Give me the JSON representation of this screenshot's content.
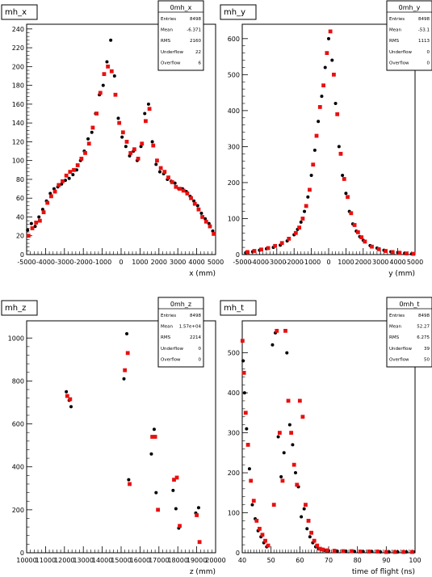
{
  "chart_data": [
    {
      "type": "scatter",
      "title": "mh_x",
      "xlabel": "x (mm)",
      "ylabel": "",
      "xlim": [
        -5000,
        5000
      ],
      "ylim": [
        0,
        245
      ],
      "xticks": [
        -5000,
        -4000,
        -3000,
        -2000,
        -1000,
        0,
        1000,
        2000,
        3000,
        4000,
        5000
      ],
      "xticklabels": [
        "-5000",
        "-4000",
        "-3000",
        "-2000",
        "-1000",
        "0",
        "1000",
        "2000",
        "3000",
        "4000",
        "5000"
      ],
      "yticks": [
        0,
        20,
        40,
        60,
        80,
        100,
        120,
        140,
        160,
        180,
        200,
        220,
        240
      ],
      "stats": {
        "title": "0mh_x",
        "rows": [
          {
            "label": "Entries",
            "value": "8498"
          },
          {
            "label": "Mean",
            "value": "-6.371"
          },
          {
            "label": "RMS",
            "value": "2160"
          },
          {
            "label": "Underflow",
            "value": "22"
          },
          {
            "label": "Overflow",
            "value": "6"
          }
        ]
      },
      "series": [
        {
          "color": "#000000",
          "x": [
            -4950,
            -4750,
            -4550,
            -4350,
            -4150,
            -3950,
            -3750,
            -3550,
            -3350,
            -3150,
            -2950,
            -2750,
            -2550,
            -2350,
            -2150,
            -1950,
            -1750,
            -1550,
            -1350,
            -1150,
            -950,
            -750,
            -550,
            -350,
            -150,
            50,
            250,
            450,
            650,
            850,
            1050,
            1250,
            1450,
            1650,
            1850,
            2050,
            2250,
            2450,
            2650,
            2850,
            3050,
            3250,
            3450,
            3650,
            3850,
            4050,
            4250,
            4450,
            4650,
            4850
          ],
          "y": [
            26,
            33,
            30,
            40,
            48,
            57,
            65,
            70,
            72,
            75,
            79,
            81,
            85,
            90,
            100,
            110,
            123,
            130,
            150,
            170,
            180,
            205,
            228,
            190,
            145,
            125,
            115,
            105,
            110,
            100,
            115,
            150,
            160,
            120,
            96,
            88,
            86,
            80,
            78,
            76,
            70,
            70,
            67,
            62,
            57,
            52,
            44,
            38,
            33,
            25
          ]
        },
        {
          "color": "#e81010",
          "x": [
            -4900,
            -4700,
            -4500,
            -4300,
            -4100,
            -3900,
            -3700,
            -3500,
            -3300,
            -3100,
            -2900,
            -2700,
            -2500,
            -2300,
            -2100,
            -1900,
            -1700,
            -1500,
            -1300,
            -1100,
            -900,
            -700,
            -500,
            -300,
            -100,
            100,
            300,
            500,
            700,
            900,
            1100,
            1300,
            1500,
            1700,
            1900,
            2100,
            2300,
            2500,
            2700,
            2900,
            3100,
            3300,
            3500,
            3700,
            3900,
            4100,
            4300,
            4500,
            4700,
            4900
          ],
          "y": [
            20,
            28,
            34,
            36,
            45,
            55,
            62,
            67,
            74,
            78,
            84,
            88,
            90,
            95,
            102,
            108,
            118,
            135,
            150,
            172,
            192,
            200,
            195,
            170,
            140,
            130,
            120,
            108,
            112,
            102,
            118,
            142,
            155,
            116,
            100,
            92,
            88,
            82,
            77,
            72,
            70,
            68,
            65,
            60,
            54,
            48,
            40,
            35,
            30,
            22
          ]
        }
      ]
    },
    {
      "type": "scatter",
      "title": "mh_y",
      "xlabel": "y (mm)",
      "ylabel": "",
      "xlim": [
        -5000,
        5000
      ],
      "ylim": [
        0,
        640
      ],
      "xticks": [
        -5000,
        -4000,
        -3000,
        -2000,
        -1000,
        0,
        1000,
        2000,
        3000,
        4000,
        5000
      ],
      "xticklabels": [
        "-5000",
        "-4000",
        "-3000",
        "-2000",
        "-1000",
        "0",
        "1000",
        "2000",
        "3000",
        "4000",
        "5000"
      ],
      "yticks": [
        0,
        100,
        200,
        300,
        400,
        500,
        600
      ],
      "stats": {
        "title": "0mh_y",
        "rows": [
          {
            "label": "Entries",
            "value": "8498"
          },
          {
            "label": "Mean",
            "value": "-53.1"
          },
          {
            "label": "RMS",
            "value": "1113"
          },
          {
            "label": "Underflow",
            "value": "0"
          },
          {
            "label": "Overflow",
            "value": "0"
          }
        ]
      },
      "series": [
        {
          "color": "#000000",
          "x": [
            -4800,
            -4400,
            -4000,
            -3600,
            -3200,
            -2800,
            -2400,
            -2000,
            -1800,
            -1600,
            -1400,
            -1200,
            -1000,
            -800,
            -600,
            -400,
            -200,
            0,
            200,
            400,
            600,
            800,
            1000,
            1200,
            1400,
            1600,
            1800,
            2000,
            2400,
            2800,
            3200,
            3600,
            4000,
            4400,
            4800
          ],
          "y": [
            5,
            8,
            12,
            16,
            20,
            26,
            38,
            55,
            70,
            90,
            120,
            160,
            220,
            290,
            370,
            440,
            520,
            600,
            540,
            420,
            300,
            220,
            170,
            120,
            85,
            65,
            50,
            40,
            25,
            18,
            12,
            8,
            6,
            4,
            2
          ]
        },
        {
          "color": "#e81010",
          "x": [
            -4700,
            -4300,
            -3900,
            -3500,
            -3100,
            -2700,
            -2300,
            -1900,
            -1700,
            -1500,
            -1300,
            -1100,
            -900,
            -700,
            -500,
            -300,
            -100,
            100,
            300,
            500,
            700,
            900,
            1100,
            1300,
            1500,
            1700,
            1900,
            2100,
            2500,
            2900,
            3300,
            3700,
            4100,
            4500,
            4900
          ],
          "y": [
            7,
            10,
            14,
            18,
            24,
            32,
            44,
            60,
            75,
            100,
            135,
            180,
            250,
            330,
            410,
            470,
            560,
            620,
            500,
            390,
            280,
            210,
            160,
            115,
            82,
            62,
            48,
            36,
            22,
            15,
            10,
            7,
            5,
            3,
            2
          ]
        }
      ]
    },
    {
      "type": "scatter",
      "title": "mh_z",
      "xlabel": "z (mm)",
      "ylabel": "",
      "xlim": [
        10000,
        20000
      ],
      "ylim": [
        0,
        1080
      ],
      "xticks": [
        10000,
        11000,
        12000,
        13000,
        14000,
        15000,
        16000,
        17000,
        18000,
        19000,
        20000
      ],
      "xticklabels": [
        "10000",
        "11000",
        "12000",
        "13000",
        "14000",
        "15000",
        "16000",
        "17000",
        "18000",
        "19000",
        "20000"
      ],
      "yticks": [
        0,
        200,
        400,
        600,
        800,
        1000
      ],
      "stats": {
        "title": "0mh_z",
        "rows": [
          {
            "label": "Entries",
            "value": "8498"
          },
          {
            "label": "Mean",
            "value": "1.57e+04"
          },
          {
            "label": "RMS",
            "value": "2214"
          },
          {
            "label": "Underflow",
            "value": "0"
          },
          {
            "label": "Overflow",
            "value": "0"
          }
        ]
      },
      "series": [
        {
          "color": "#000000",
          "x": [
            12100,
            12250,
            12350,
            15150,
            15300,
            15400,
            16600,
            16750,
            16850,
            17750,
            17900,
            18050,
            18950,
            19100
          ],
          "y": [
            750,
            710,
            680,
            810,
            1020,
            340,
            460,
            575,
            280,
            290,
            205,
            115,
            185,
            210
          ]
        },
        {
          "color": "#e81010",
          "x": [
            12150,
            12300,
            15200,
            15350,
            15450,
            16650,
            16800,
            16950,
            17800,
            17950,
            18100,
            19000,
            19150
          ],
          "y": [
            730,
            715,
            850,
            930,
            320,
            540,
            540,
            200,
            340,
            350,
            125,
            175,
            50
          ]
        }
      ]
    },
    {
      "type": "scatter",
      "title": "mh_t",
      "xlabel": "time of flight (ns)",
      "ylabel": "",
      "xlim": [
        40,
        100
      ],
      "ylim": [
        0,
        580
      ],
      "xticks": [
        40,
        50,
        60,
        70,
        80,
        90,
        100
      ],
      "xticklabels": [
        "40",
        "50",
        "60",
        "70",
        "80",
        "90",
        "100"
      ],
      "yticks": [
        0,
        100,
        200,
        300,
        400,
        500
      ],
      "stats": {
        "title": "0mh_t",
        "rows": [
          {
            "label": "Entries",
            "value": "8498"
          },
          {
            "label": "Mean",
            "value": "52.27"
          },
          {
            "label": "RMS",
            "value": "6.275"
          },
          {
            "label": "Underflow",
            "value": "39"
          },
          {
            "label": "Overflow",
            "value": "50"
          }
        ]
      },
      "series": [
        {
          "color": "#000000",
          "x": [
            40.3,
            40.8,
            41.5,
            42.5,
            43.5,
            44.5,
            45.5,
            46.5,
            47.5,
            48.5,
            50.5,
            51.5,
            52.5,
            53.5,
            54.5,
            55.5,
            56.5,
            57.5,
            58.5,
            59.5,
            60.5,
            61.5,
            62.5,
            63.5,
            64.5,
            65.5,
            66.5,
            67.5,
            68.5,
            70,
            73,
            76,
            79,
            82,
            85,
            88,
            91,
            94,
            97,
            99.5
          ],
          "y": [
            480,
            400,
            310,
            210,
            120,
            85,
            55,
            40,
            25,
            15,
            520,
            550,
            290,
            190,
            250,
            500,
            320,
            270,
            200,
            165,
            90,
            110,
            60,
            40,
            25,
            15,
            10,
            8,
            6,
            5,
            4,
            4,
            3,
            3,
            3,
            2,
            2,
            2,
            2,
            2
          ]
        },
        {
          "color": "#e81010",
          "x": [
            40.1,
            40.6,
            41.2,
            42.0,
            43.0,
            44.0,
            45.0,
            46.0,
            47.0,
            48.0,
            49.0,
            51.0,
            52.0,
            53.0,
            54.0,
            55.0,
            56.0,
            57.0,
            58.0,
            59.0,
            60.0,
            61.0,
            62.0,
            63.0,
            64.0,
            65.0,
            66.0,
            67.0,
            68.0,
            69.5,
            72,
            75,
            78,
            81,
            84,
            87,
            90,
            93,
            96,
            99
          ],
          "y": [
            530,
            450,
            350,
            270,
            180,
            130,
            80,
            60,
            45,
            30,
            18,
            120,
            555,
            300,
            180,
            555,
            380,
            300,
            220,
            170,
            380,
            340,
            120,
            80,
            50,
            30,
            18,
            10,
            8,
            6,
            5,
            4,
            4,
            3,
            3,
            3,
            2,
            2,
            2,
            2
          ]
        }
      ]
    }
  ]
}
